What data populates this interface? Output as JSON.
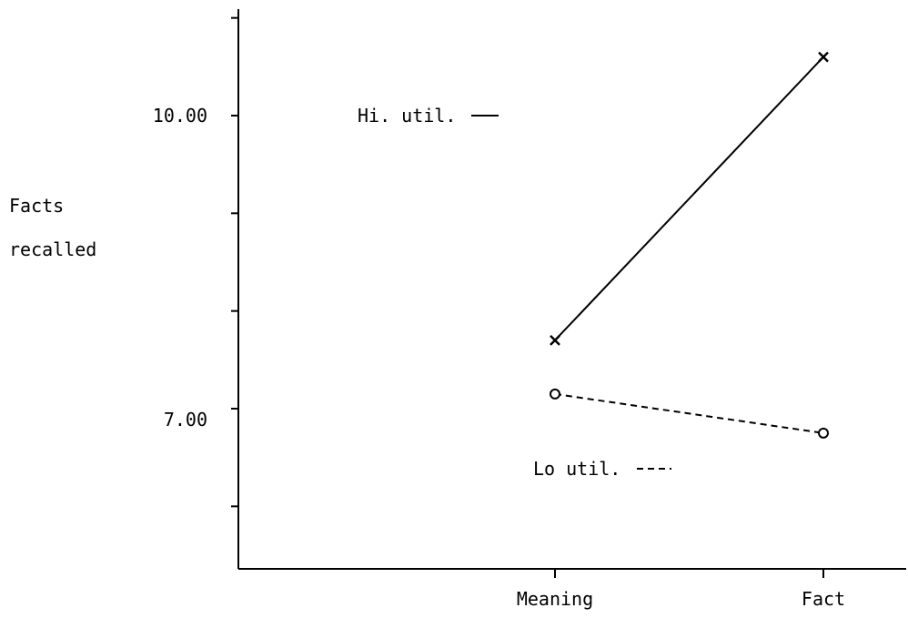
{
  "chart_data": {
    "type": "line",
    "title": "",
    "xlabel": "",
    "ylabel": "Facts recalled",
    "ylabel_lines": [
      "Facts",
      "recalled"
    ],
    "categories": [
      "Meaning",
      "Fact"
    ],
    "y_ticks": [
      6.0,
      7.0,
      8.0,
      9.0,
      10.0,
      11.0
    ],
    "y_tick_labels": [
      {
        "value": 10.0,
        "label": "10.00"
      },
      {
        "value": 7.0,
        "label": "7.00"
      }
    ],
    "ylim": [
      5.4,
      11.1
    ],
    "grid": false,
    "series": [
      {
        "name": "Hi. util.",
        "legend_label": "Hi. util.",
        "line_style": "solid",
        "marker": "x",
        "values": [
          7.7,
          10.6
        ]
      },
      {
        "name": "Lo util.",
        "legend_label": "Lo util.",
        "line_style": "dashed",
        "marker": "o",
        "values": [
          7.15,
          6.75
        ]
      }
    ],
    "colors": {
      "ink": "#000000",
      "background": "#ffffff"
    }
  }
}
